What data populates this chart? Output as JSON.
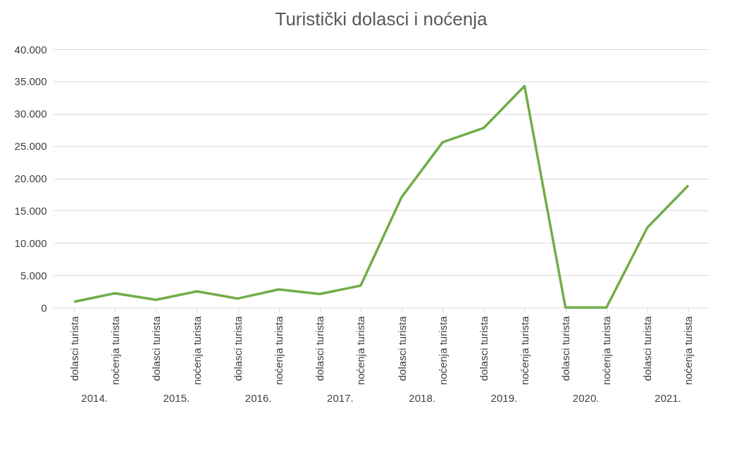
{
  "chart_data": {
    "type": "line",
    "title": "Turistički dolasci i noćenja",
    "categories": [
      "dolasci turista",
      "noćenja turista",
      "dolasci turista",
      "noćenja turista",
      "dolasci turista",
      "noćenja turista",
      "dolasci turista",
      "noćenja turista",
      "dolasci turista",
      "noćenja turista",
      "dolasci turista",
      "noćenja turista",
      "dolasci turista",
      "noćenja turista",
      "dolasci turista",
      "noćenja turista"
    ],
    "series": [
      {
        "color": "#70ad47",
        "values": [
          900,
          2200,
          1200,
          2500,
          1400,
          2800,
          2100,
          3400,
          17100,
          25600,
          27800,
          34300,
          0,
          0,
          12400,
          18900
        ]
      }
    ],
    "ylim": [
      0,
      40000
    ],
    "yticks": [
      0,
      {
        "value": 5000,
        "label": "5.000"
      },
      {
        "value": 10000,
        "label": "10.000"
      },
      {
        "value": 15000,
        "label": "15.000"
      },
      {
        "value": 20000,
        "label": "20.000"
      },
      {
        "value": 25000,
        "label": "25.000"
      },
      {
        "value": 30000,
        "label": "30.000"
      },
      {
        "value": 35000,
        "label": "35.000"
      },
      {
        "value": 40000,
        "label": "40.000"
      }
    ],
    "grid": "y",
    "marker": "none",
    "line_style": "solid",
    "annotations": [
      "2014.",
      "2015.",
      "2016.",
      "2017.",
      "2018.",
      "2019.",
      "2020.",
      "2021."
    ]
  }
}
